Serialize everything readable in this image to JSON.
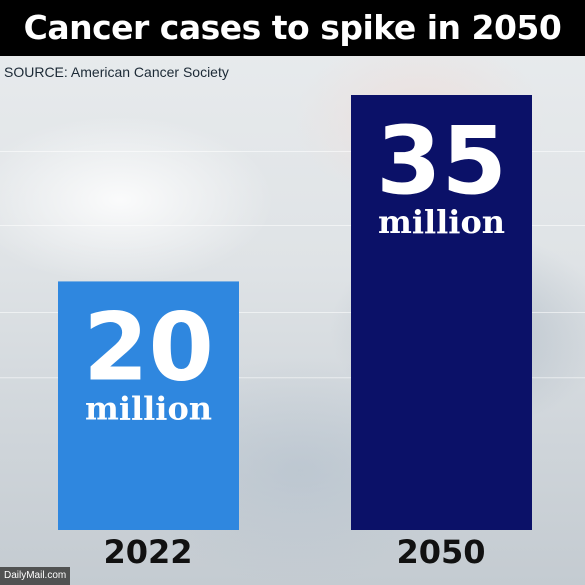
{
  "header": {
    "title": "Cancer cases to spike in 2050",
    "source": "SOURCE: American Cancer Society"
  },
  "chart_data": {
    "type": "bar",
    "title": "Cancer cases to spike in 2050",
    "categories": [
      "2022",
      "2050"
    ],
    "values": [
      20,
      35
    ],
    "value_labels": [
      "20",
      "35"
    ],
    "unit_label": "million",
    "ylim": [
      0,
      35
    ],
    "grid": true,
    "colors": [
      "#2f87df",
      "#0b1168"
    ]
  },
  "watermark": "DailyMail.com"
}
